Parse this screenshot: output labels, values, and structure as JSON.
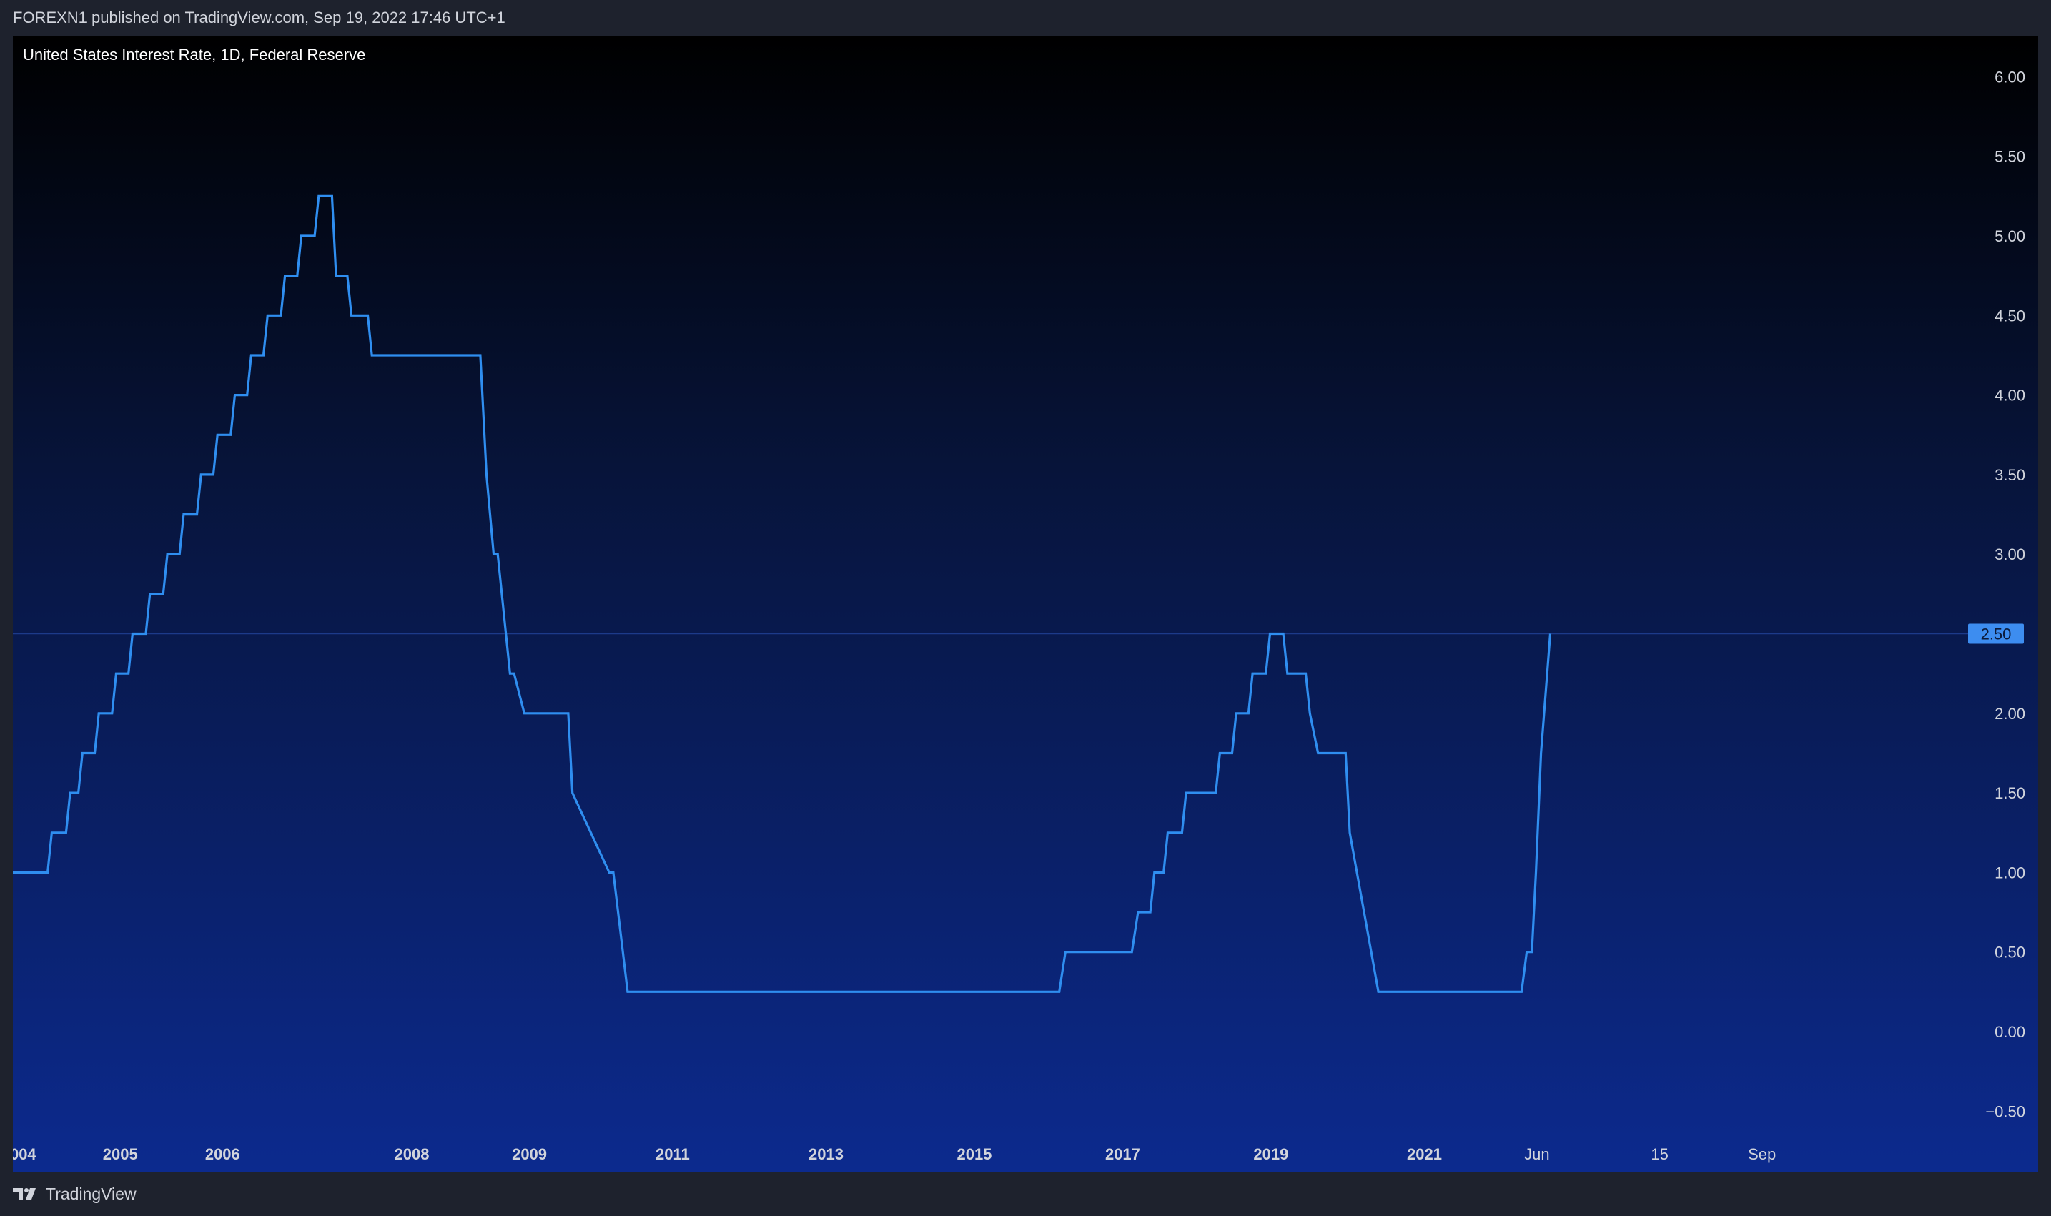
{
  "header": {
    "published": "FOREXN1 published on TradingView.com, Sep 19, 2022 17:46 UTC+1"
  },
  "legend": {
    "title": "United States Interest Rate, 1D, Federal Reserve"
  },
  "footer": {
    "brand": "TradingView",
    "logo_icon": "tradingview-logo-icon"
  },
  "colors": {
    "line": "#2f8ef0",
    "price_label_bg": "#3d8df0",
    "axis_text": "#d1d4dc",
    "grid_line": "#1c3a8a"
  },
  "chart_data": {
    "type": "line",
    "title": "United States Interest Rate, 1D, Federal Reserve",
    "xlabel": "",
    "ylabel": "",
    "ylim": [
      -0.75,
      6.25
    ],
    "xlim": [
      2004.0,
      2023.15
    ],
    "grid": false,
    "last_value": 2.5,
    "last_value_label": "2.50",
    "y_ticks": [
      {
        "value": 6.0,
        "label": "6.00"
      },
      {
        "value": 5.5,
        "label": "5.50"
      },
      {
        "value": 5.0,
        "label": "5.00"
      },
      {
        "value": 4.5,
        "label": "4.50"
      },
      {
        "value": 4.0,
        "label": "4.00"
      },
      {
        "value": 3.5,
        "label": "3.50"
      },
      {
        "value": 3.0,
        "label": "3.00"
      },
      {
        "value": 2.0,
        "label": "2.00"
      },
      {
        "value": 1.5,
        "label": "1.50"
      },
      {
        "value": 1.0,
        "label": "1.00"
      },
      {
        "value": 0.5,
        "label": "0.50"
      },
      {
        "value": 0.0,
        "label": "0.00"
      },
      {
        "value": -0.5,
        "label": "−0.50"
      }
    ],
    "x_ticks": [
      {
        "x": 2004.1,
        "label": "004",
        "bold": true
      },
      {
        "x": 2005.05,
        "label": "2005",
        "bold": true
      },
      {
        "x": 2006.05,
        "label": "2006",
        "bold": true
      },
      {
        "x": 2007.9,
        "label": "2008",
        "bold": true
      },
      {
        "x": 2009.05,
        "label": "2009",
        "bold": true
      },
      {
        "x": 2010.45,
        "label": "2011",
        "bold": true
      },
      {
        "x": 2011.95,
        "label": "2013",
        "bold": true
      },
      {
        "x": 2013.4,
        "label": "2015",
        "bold": true
      },
      {
        "x": 2014.85,
        "label": "2017",
        "bold": true
      },
      {
        "x": 2016.3,
        "label": "2019",
        "bold": true
      },
      {
        "x": 2017.8,
        "label": "2021",
        "bold": true
      },
      {
        "x": 2018.9,
        "label": "Jun",
        "bold": false
      },
      {
        "x": 2020.1,
        "label": "15",
        "bold": false
      },
      {
        "x": 2021.1,
        "label": "Sep",
        "bold": false
      }
    ],
    "series": [
      {
        "x": [
          2004.0,
          2004.34,
          2004.38,
          2004.52,
          2004.56,
          2004.64,
          2004.68,
          2004.8,
          2004.84,
          2004.97,
          2005.01,
          2005.13,
          2005.17,
          2005.3,
          2005.34,
          2005.47,
          2005.51,
          2005.63,
          2005.67,
          2005.8,
          2005.84,
          2005.96,
          2006.0,
          2006.13,
          2006.17,
          2006.29,
          2006.33,
          2006.45,
          2006.49,
          2006.62,
          2006.66,
          2006.78,
          2006.82,
          2006.95,
          2006.99,
          2007.12,
          2007.16,
          2007.27,
          2007.31,
          2007.47,
          2007.51,
          2008.57,
          2008.63,
          2008.7,
          2008.74,
          2008.86,
          2008.9,
          2009.0,
          2009.04,
          2009.14,
          2009.18,
          2009.26,
          2009.3,
          2009.43,
          2009.47,
          2009.83,
          2009.87,
          2010.01,
          2010.07,
          2010.22,
          2010.28,
          2014.23,
          2014.29,
          2014.94,
          2015.0,
          2015.12,
          2015.16,
          2015.25,
          2015.29,
          2015.43,
          2015.47,
          2015.76,
          2015.8,
          2015.92,
          2015.96,
          2016.08,
          2016.12,
          2016.25,
          2016.29,
          2016.42,
          2016.46,
          2016.64,
          2016.68,
          2016.76,
          2016.8,
          2017.03,
          2017.07,
          2017.35,
          2017.39,
          2017.6,
          2017.66,
          2017.82,
          2017.88,
          2017.98,
          2018.07,
          2018.75,
          2018.8,
          2018.85,
          2018.89,
          2018.94,
          2019.03
        ],
        "y": [
          1.0,
          1.0,
          1.25,
          1.25,
          1.5,
          1.5,
          1.75,
          1.75,
          2.0,
          2.0,
          2.25,
          2.25,
          2.5,
          2.5,
          2.75,
          2.75,
          3.0,
          3.0,
          3.25,
          3.25,
          3.5,
          3.5,
          3.75,
          3.75,
          4.0,
          4.0,
          4.25,
          4.25,
          4.5,
          4.5,
          4.75,
          4.75,
          5.0,
          5.0,
          5.25,
          5.25,
          4.75,
          4.75,
          4.5,
          4.5,
          4.25,
          4.25,
          3.5,
          3.0,
          3.0,
          2.25,
          2.25,
          2.0,
          2.0,
          2.0,
          2.0,
          2.0,
          2.0,
          2.0,
          1.5,
          1.0,
          1.0,
          0.25,
          0.25,
          0.25,
          0.25,
          0.25,
          0.5,
          0.5,
          0.75,
          0.75,
          1.0,
          1.0,
          1.25,
          1.25,
          1.5,
          1.5,
          1.75,
          1.75,
          2.0,
          2.0,
          2.25,
          2.25,
          2.5,
          2.5,
          2.25,
          2.25,
          2.0,
          1.75,
          1.75,
          1.75,
          1.25,
          0.25,
          0.25,
          0.25,
          0.25,
          0.25,
          0.25,
          0.25,
          0.25,
          0.25,
          0.5,
          0.5,
          1.0,
          1.75,
          2.5
        ]
      }
    ]
  }
}
